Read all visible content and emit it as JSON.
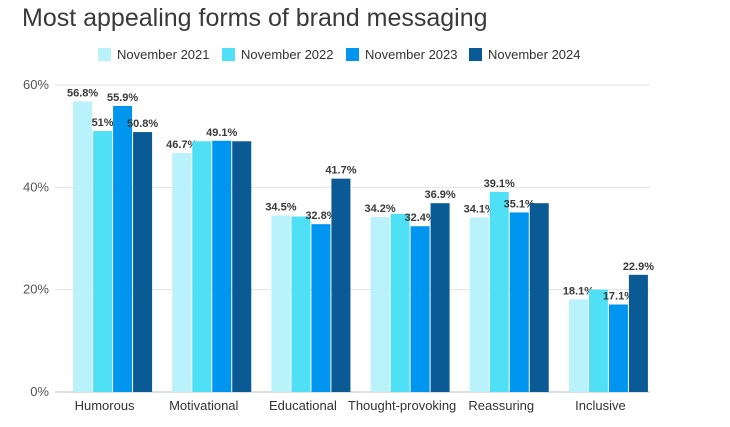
{
  "chart_data": {
    "type": "bar",
    "title": "Most appealing forms of brand messaging",
    "categories": [
      "Humorous",
      "Motivational",
      "Educational",
      "Thought-provoking",
      "Reassuring",
      "Inclusive"
    ],
    "series": [
      {
        "name": "November 2021",
        "color": "#b9f2fb",
        "values": [
          56.8,
          46.7,
          34.5,
          34.2,
          34.1,
          18.1
        ],
        "labels": [
          "56.8%",
          "46.7%",
          "34.5%",
          "34.2%",
          "34.1%",
          "18.1%"
        ]
      },
      {
        "name": "November 2022",
        "color": "#4fe0f5",
        "values": [
          51.0,
          49.0,
          34.3,
          34.8,
          39.1,
          20.0
        ],
        "labels": [
          "51%",
          "",
          "",
          "",
          "39.1%",
          ""
        ]
      },
      {
        "name": "November 2023",
        "color": "#0096f0",
        "values": [
          55.9,
          49.1,
          32.8,
          32.4,
          35.1,
          17.1
        ],
        "labels": [
          "55.9%",
          "49.1%",
          "32.8%",
          "32.4%",
          "35.1%",
          "17.1%"
        ]
      },
      {
        "name": "November 2024",
        "color": "#0a5a96",
        "values": [
          50.8,
          49.0,
          41.7,
          36.9,
          36.9,
          22.9
        ],
        "labels": [
          "50.8%",
          "",
          "41.7%",
          "36.9%",
          "",
          "22.9%"
        ]
      }
    ],
    "yticks": [
      "0%",
      "20%",
      "40%",
      "60%"
    ],
    "ylim": [
      0,
      60
    ],
    "grid": true,
    "legend_position": "top"
  }
}
